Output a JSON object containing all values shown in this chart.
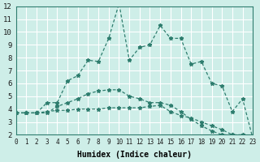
{
  "xlabel": "Humidex (Indice chaleur)",
  "ylabel": "",
  "background_color": "#ceeee8",
  "grid_color": "#ffffff",
  "line_color": "#2e7d6e",
  "xlim": [
    0,
    23
  ],
  "ylim": [
    2,
    12
  ],
  "yticks": [
    2,
    3,
    4,
    5,
    6,
    7,
    8,
    9,
    10,
    11,
    12
  ],
  "xticks": [
    0,
    1,
    2,
    3,
    4,
    5,
    6,
    7,
    8,
    9,
    10,
    11,
    12,
    13,
    14,
    15,
    16,
    17,
    18,
    19,
    20,
    21,
    22,
    23
  ],
  "series": [
    [
      3.7,
      3.7,
      3.7,
      4.5,
      4.5,
      6.2,
      6.6,
      7.8,
      7.7,
      9.5,
      12.2,
      7.8,
      8.8,
      9.0,
      10.5,
      9.5,
      9.5,
      7.5,
      7.7,
      6.0,
      5.8,
      3.8,
      4.8,
      1.7
    ],
    [
      3.7,
      3.7,
      3.7,
      3.7,
      4.2,
      4.5,
      4.8,
      5.2,
      5.4,
      5.5,
      5.5,
      5.0,
      4.8,
      4.5,
      4.5,
      4.3,
      3.8,
      3.2,
      2.7,
      2.3,
      2.0,
      2.0,
      2.0,
      1.7
    ],
    [
      3.7,
      3.7,
      3.7,
      3.8,
      3.9,
      3.9,
      4.0,
      4.0,
      4.0,
      4.1,
      4.1,
      4.1,
      4.1,
      4.2,
      4.3,
      3.8,
      3.5,
      3.3,
      3.0,
      2.7,
      2.4,
      2.0,
      1.8,
      1.7
    ]
  ]
}
